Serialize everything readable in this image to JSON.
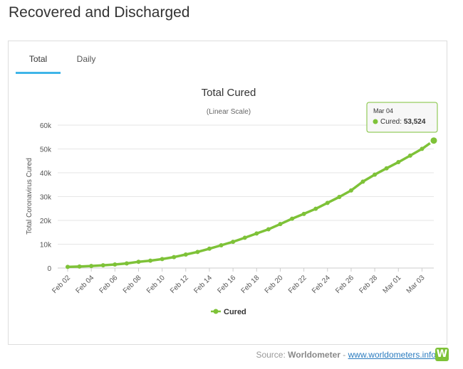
{
  "page": {
    "heading": "Recovered and Discharged"
  },
  "tabs": [
    {
      "label": "Total",
      "active": true
    },
    {
      "label": "Daily",
      "active": false
    }
  ],
  "tooltip": {
    "date": "Mar 04",
    "series": "Cured",
    "value": "53,524"
  },
  "source": {
    "prefix": "Source:",
    "name": "Worldometer",
    "sep": "-",
    "url_text": "www.worldometers.info",
    "logo": "W"
  },
  "colors": {
    "series": "#7ec238",
    "tab_accent": "#3fb5e8"
  },
  "chart_data": {
    "type": "line",
    "title": "Total Cured",
    "subtitle": "(Linear Scale)",
    "ylabel": "Total Coronavirus Cured",
    "xlabel": "",
    "ylim": [
      0,
      60000
    ],
    "yticks": [
      0,
      10000,
      20000,
      30000,
      40000,
      50000,
      60000
    ],
    "ytick_labels": [
      "0",
      "10k",
      "20k",
      "30k",
      "40k",
      "50k",
      "60k"
    ],
    "x_tick_labels": [
      "Feb 02",
      "Feb 04",
      "Feb 06",
      "Feb 08",
      "Feb 10",
      "Feb 12",
      "Feb 14",
      "Feb 16",
      "Feb 18",
      "Feb 20",
      "Feb 22",
      "Feb 24",
      "Feb 26",
      "Feb 28",
      "Mar 01",
      "Mar 03"
    ],
    "grid": true,
    "legend": "bottom-center",
    "series": [
      {
        "name": "Cured",
        "x": [
          "Feb 02",
          "Feb 03",
          "Feb 04",
          "Feb 05",
          "Feb 06",
          "Feb 07",
          "Feb 08",
          "Feb 09",
          "Feb 10",
          "Feb 11",
          "Feb 12",
          "Feb 13",
          "Feb 14",
          "Feb 15",
          "Feb 16",
          "Feb 17",
          "Feb 18",
          "Feb 19",
          "Feb 20",
          "Feb 21",
          "Feb 22",
          "Feb 23",
          "Feb 24",
          "Feb 25",
          "Feb 26",
          "Feb 27",
          "Feb 28",
          "Feb 29",
          "Mar 01",
          "Mar 02",
          "Mar 03",
          "Mar 04"
        ],
        "values": [
          479,
          623,
          874,
          1151,
          1487,
          1926,
          2617,
          3112,
          3763,
          4593,
          5683,
          6763,
          8120,
          9565,
          11004,
          12706,
          14500,
          16266,
          18462,
          20724,
          22738,
          24870,
          27364,
          29865,
          32580,
          36284,
          39217,
          41874,
          44460,
          47202,
          50039,
          53524
        ]
      }
    ]
  }
}
